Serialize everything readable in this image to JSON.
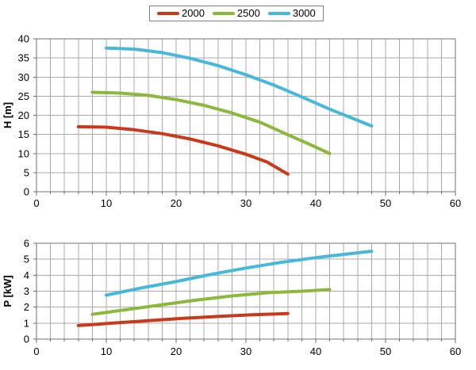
{
  "legend": {
    "items": [
      {
        "label": "2000",
        "color": "#C9391B"
      },
      {
        "label": "2500",
        "color": "#8CB83C"
      },
      {
        "label": "3000",
        "color": "#46B9DB"
      }
    ]
  },
  "styles": {
    "background": "#FFFFFF",
    "grid_color": "#ABABAB",
    "frame_color": "#707070",
    "text_color": "#000000",
    "curve_width": 4
  },
  "chart_data": [
    {
      "type": "line",
      "title": "",
      "xlabel": "",
      "ylabel": "H [m]",
      "xlim": [
        0,
        60
      ],
      "ylim": [
        0,
        40
      ],
      "xticks": [
        0,
        10,
        20,
        30,
        40,
        50,
        60
      ],
      "yticks": [
        0,
        5,
        10,
        15,
        20,
        25,
        30,
        35,
        40
      ],
      "x_minor_step": 2,
      "grid": true,
      "legend_position": "top-center",
      "series": [
        {
          "name": "2000",
          "color": "#C9391B",
          "points": [
            [
              6,
              17
            ],
            [
              10,
              16.9
            ],
            [
              14,
              16.2
            ],
            [
              18,
              15.2
            ],
            [
              22,
              13.8
            ],
            [
              26,
              12.0
            ],
            [
              30,
              9.8
            ],
            [
              33,
              7.8
            ],
            [
              36,
              4.6
            ]
          ]
        },
        {
          "name": "2500",
          "color": "#8CB83C",
          "points": [
            [
              8,
              26
            ],
            [
              12,
              25.8
            ],
            [
              16,
              25.2
            ],
            [
              20,
              24.1
            ],
            [
              24,
              22.6
            ],
            [
              28,
              20.6
            ],
            [
              32,
              18.2
            ],
            [
              36,
              14.9
            ],
            [
              39,
              12.5
            ],
            [
              42,
              10
            ]
          ]
        },
        {
          "name": "3000",
          "color": "#46B9DB",
          "points": [
            [
              10,
              37.6
            ],
            [
              14,
              37.3
            ],
            [
              18,
              36.4
            ],
            [
              22,
              34.9
            ],
            [
              26,
              33.0
            ],
            [
              30,
              30.6
            ],
            [
              34,
              27.9
            ],
            [
              38,
              24.8
            ],
            [
              42,
              21.6
            ],
            [
              45,
              19.4
            ],
            [
              48,
              17.2
            ]
          ]
        }
      ]
    },
    {
      "type": "line",
      "title": "",
      "xlabel": "",
      "ylabel": "P [kW]",
      "xlim": [
        0,
        60
      ],
      "ylim": [
        0,
        6
      ],
      "xticks": [
        0,
        10,
        20,
        30,
        40,
        50,
        60
      ],
      "yticks": [
        0,
        1,
        2,
        3,
        4,
        5,
        6
      ],
      "x_minor_step": 2,
      "grid": true,
      "series": [
        {
          "name": "2000",
          "color": "#C9391B",
          "points": [
            [
              6,
              0.85
            ],
            [
              11,
              1.0
            ],
            [
              16,
              1.15
            ],
            [
              21,
              1.3
            ],
            [
              26,
              1.42
            ],
            [
              31,
              1.52
            ],
            [
              36,
              1.6
            ]
          ]
        },
        {
          "name": "2500",
          "color": "#8CB83C",
          "points": [
            [
              8,
              1.55
            ],
            [
              13,
              1.85
            ],
            [
              18,
              2.15
            ],
            [
              23,
              2.45
            ],
            [
              28,
              2.7
            ],
            [
              33,
              2.9
            ],
            [
              38,
              3.0
            ],
            [
              42,
              3.1
            ]
          ]
        },
        {
          "name": "3000",
          "color": "#46B9DB",
          "points": [
            [
              10,
              2.75
            ],
            [
              15,
              3.2
            ],
            [
              20,
              3.6
            ],
            [
              25,
              4.05
            ],
            [
              30,
              4.45
            ],
            [
              35,
              4.8
            ],
            [
              40,
              5.1
            ],
            [
              44,
              5.3
            ],
            [
              48,
              5.5
            ]
          ]
        }
      ]
    }
  ]
}
